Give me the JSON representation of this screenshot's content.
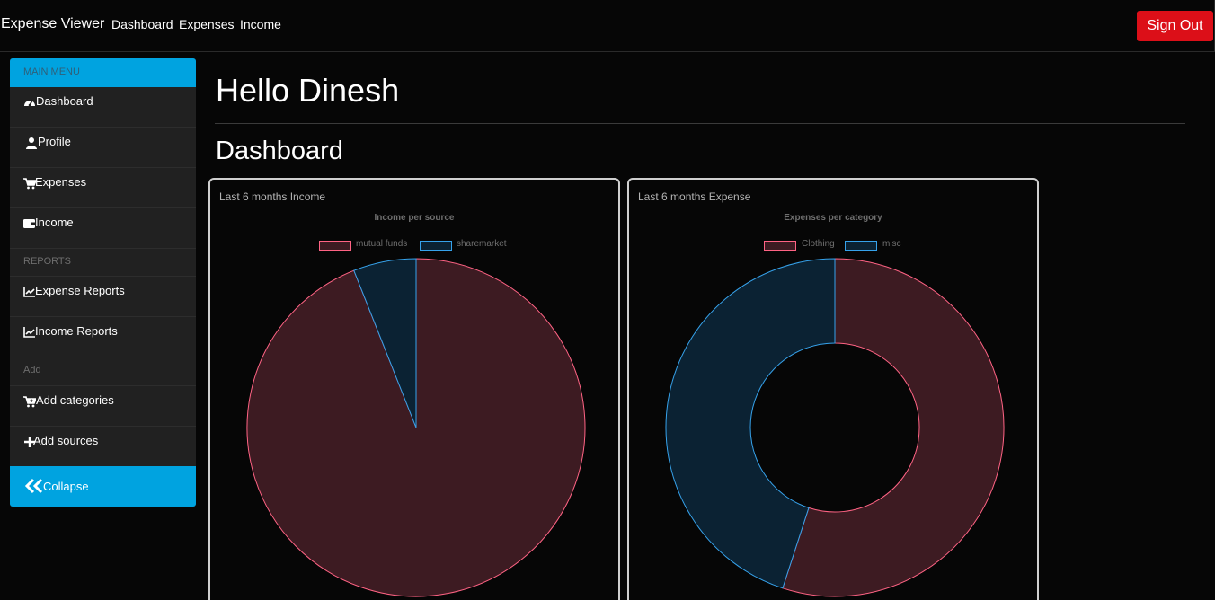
{
  "navbar": {
    "brand": "Expense Viewer",
    "links": [
      "Dashboard",
      "Expenses",
      "Income"
    ],
    "signout_label": "Sign Out"
  },
  "sidebar": {
    "main_menu_label": "MAIN MENU",
    "main_items": [
      {
        "label": "Dashboard",
        "icon": "dashboard-gauge-icon"
      },
      {
        "label": "Profile",
        "icon": "user-icon"
      },
      {
        "label": "Expenses",
        "icon": "cart-icon"
      },
      {
        "label": "Income",
        "icon": "wallet-icon"
      }
    ],
    "reports_label": "REPORTS",
    "report_items": [
      {
        "label": "Expense Reports",
        "icon": "line-chart-icon"
      },
      {
        "label": "Income Reports",
        "icon": "line-chart-icon"
      }
    ],
    "add_label": "Add",
    "add_items": [
      {
        "label": "Add categories",
        "icon": "cart-plus-icon"
      },
      {
        "label": "Add sources",
        "icon": "plus-icon"
      }
    ],
    "collapse_label": "Collapse"
  },
  "main": {
    "greeting": "Hello Dinesh",
    "section_title": "Dashboard"
  },
  "colors": {
    "accent": "#00a3e0",
    "signout": "#dc0f18",
    "red_slice_fill": "#3d1b22",
    "red_slice_stroke": "#ff6384",
    "blue_slice_fill": "#0b2233",
    "blue_slice_stroke": "#36a2eb"
  },
  "chart_data": [
    {
      "type": "pie",
      "card_title": "Last 6 months Income",
      "title": "Income per source",
      "categories": [
        "mutual funds",
        "sharemarket"
      ],
      "values": [
        94,
        6
      ]
    },
    {
      "type": "doughnut",
      "card_title": "Last 6 months Expense",
      "title": "Expenses per category",
      "categories": [
        "Clothing",
        "misc"
      ],
      "values": [
        55,
        45
      ]
    }
  ]
}
